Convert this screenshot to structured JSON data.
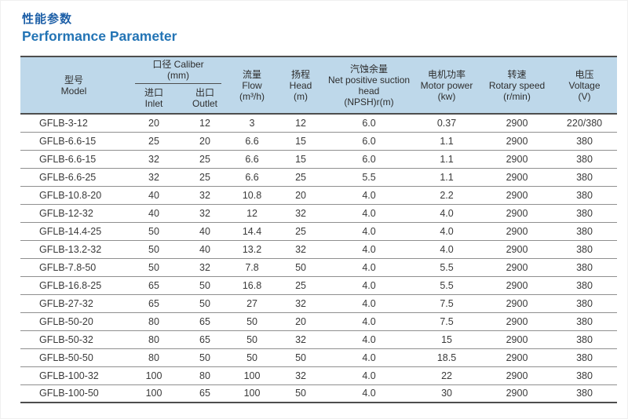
{
  "page": {
    "title_zh": "性能参数",
    "title_en": "Performance Parameter",
    "accent_color": "#1d5fa7",
    "header_bg": "#bed8ea"
  },
  "table": {
    "headers": {
      "model": {
        "zh": "型号",
        "en": "Model"
      },
      "caliber_group": {
        "label": "口径 Caliber",
        "unit": "(mm)"
      },
      "inlet": {
        "zh": "进口",
        "en": "Inlet"
      },
      "outlet": {
        "zh": "出口",
        "en": "Outlet"
      },
      "flow": {
        "zh": "流量",
        "en": "Flow",
        "unit": "(m³/h)"
      },
      "head": {
        "zh": "扬程",
        "en": "Head",
        "unit": "(m)"
      },
      "npsh": {
        "zh": "汽蚀余量",
        "en": "Net positive suction head",
        "unit": "(NPSH)r(m)"
      },
      "motor_power": {
        "zh": "电机功率",
        "en": "Motor power",
        "unit": "(kw)"
      },
      "rotary_speed": {
        "zh": "转速",
        "en": "Rotary speed",
        "unit": "(r/min)"
      },
      "voltage": {
        "zh": "电压",
        "en": "Voltage",
        "unit": "(V)"
      }
    },
    "rows": [
      [
        "GFLB-3-12",
        "20",
        "12",
        "3",
        "12",
        "6.0",
        "0.37",
        "2900",
        "220/380"
      ],
      [
        "GFLB-6.6-15",
        "25",
        "20",
        "6.6",
        "15",
        "6.0",
        "1.1",
        "2900",
        "380"
      ],
      [
        "GFLB-6.6-15",
        "32",
        "25",
        "6.6",
        "15",
        "6.0",
        "1.1",
        "2900",
        "380"
      ],
      [
        "GFLB-6.6-25",
        "32",
        "25",
        "6.6",
        "25",
        "5.5",
        "1.1",
        "2900",
        "380"
      ],
      [
        "GFLB-10.8-20",
        "40",
        "32",
        "10.8",
        "20",
        "4.0",
        "2.2",
        "2900",
        "380"
      ],
      [
        "GFLB-12-32",
        "40",
        "32",
        "12",
        "32",
        "4.0",
        "4.0",
        "2900",
        "380"
      ],
      [
        "GFLB-14.4-25",
        "50",
        "40",
        "14.4",
        "25",
        "4.0",
        "4.0",
        "2900",
        "380"
      ],
      [
        "GFLB-13.2-32",
        "50",
        "40",
        "13.2",
        "32",
        "4.0",
        "4.0",
        "2900",
        "380"
      ],
      [
        "GFLB-7.8-50",
        "50",
        "32",
        "7.8",
        "50",
        "4.0",
        "5.5",
        "2900",
        "380"
      ],
      [
        "GFLB-16.8-25",
        "65",
        "50",
        "16.8",
        "25",
        "4.0",
        "5.5",
        "2900",
        "380"
      ],
      [
        "GFLB-27-32",
        "65",
        "50",
        "27",
        "32",
        "4.0",
        "7.5",
        "2900",
        "380"
      ],
      [
        "GFLB-50-20",
        "80",
        "65",
        "50",
        "20",
        "4.0",
        "7.5",
        "2900",
        "380"
      ],
      [
        "GFLB-50-32",
        "80",
        "65",
        "50",
        "32",
        "4.0",
        "15",
        "2900",
        "380"
      ],
      [
        "GFLB-50-50",
        "80",
        "50",
        "50",
        "50",
        "4.0",
        "18.5",
        "2900",
        "380"
      ],
      [
        "GFLB-100-32",
        "100",
        "80",
        "100",
        "32",
        "4.0",
        "22",
        "2900",
        "380"
      ],
      [
        "GFLB-100-50",
        "100",
        "65",
        "100",
        "50",
        "4.0",
        "30",
        "2900",
        "380"
      ]
    ]
  }
}
